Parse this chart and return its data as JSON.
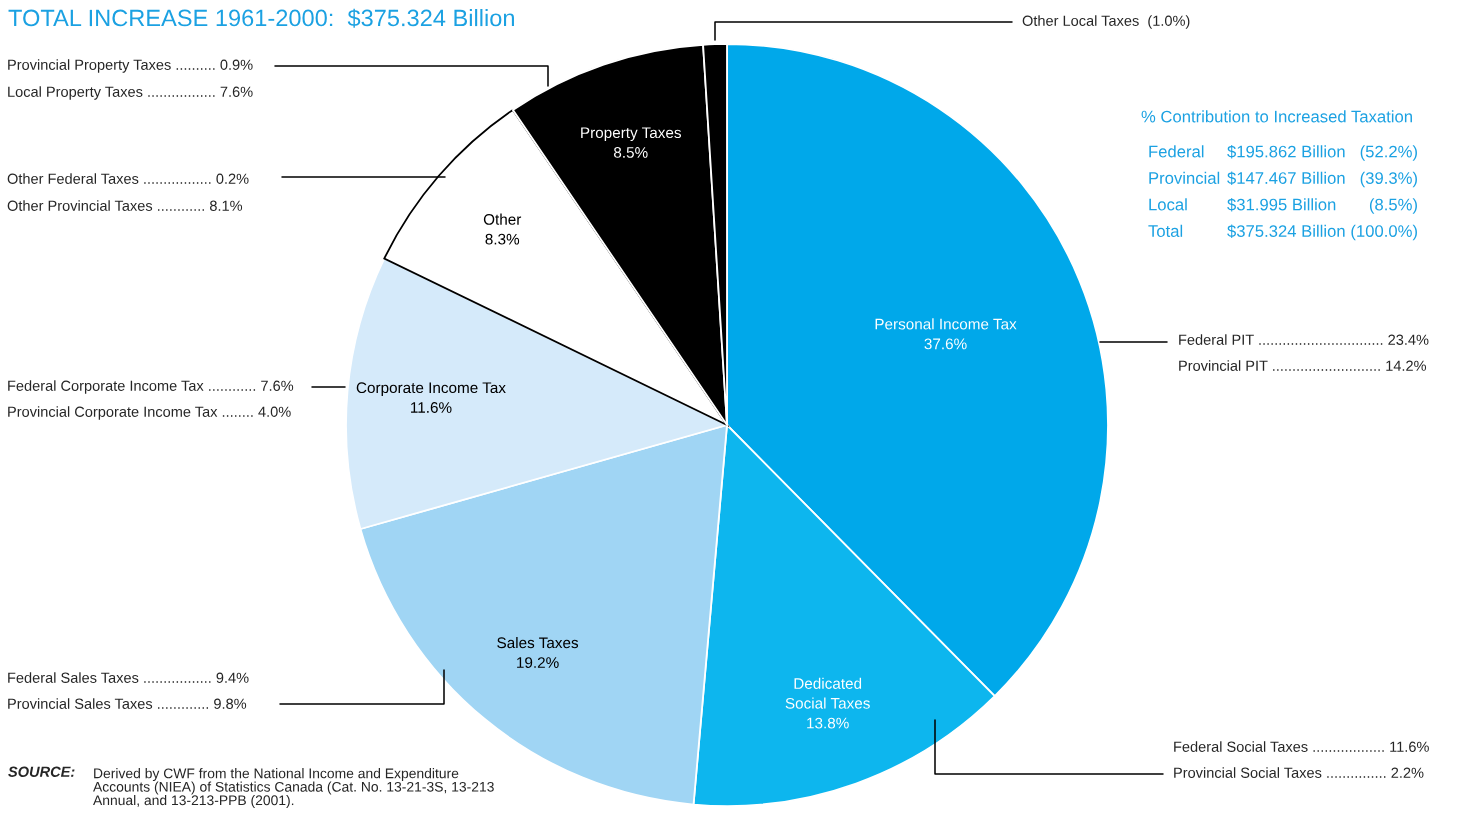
{
  "chart_data": {
    "type": "pie",
    "title": "TOTAL INCREASE 1961-2000:  $375.324 Billion",
    "categories": [
      "Personal Income Tax",
      "Dedicated\nSocial Taxes",
      "Sales Taxes",
      "Corporate Income Tax",
      "Other",
      "Property Taxes",
      "Other Local Taxes"
    ],
    "values": [
      37.6,
      13.8,
      19.2,
      11.6,
      8.3,
      8.5,
      1.0
    ],
    "colors": [
      "#00a8ea",
      "#0db6ee",
      "#a0d5f4",
      "#d5eafa",
      "#ffffff",
      "#000000",
      "#000000"
    ],
    "value_labels": [
      "37.6%",
      "13.8%",
      "19.2%",
      "11.6%",
      "8.3%",
      "8.5%",
      "(1.0%)"
    ],
    "legend": false,
    "annotations": [
      "% Contribution to Increased Taxation",
      "Federal\t$195.862 Billion\t(52.2%)",
      "Provincial\t$147.467 Billion\t(39.3%)",
      "Local\t$31.995 Billion\t(8.5%)",
      "Total\t$375.324 Billion\t(100.0%)",
      "Provincial Property Taxes .......... 0.9%",
      "Local Property Taxes ................. 7.6%",
      "Other Federal Taxes ................. 0.2%",
      "Other Provincial Taxes ............ 8.1%",
      "Federal Corporate Income Tax ............ 7.6%",
      "Provincial Corporate Income Tax ........ 4.0%",
      "Federal Sales Taxes ................. 9.4%",
      "Provincial Sales Taxes ............. 9.8%",
      "Federal PIT ............................... 23.4%",
      "Provincial PIT ........................... 14.2%",
      "Federal Social Taxes .................. 11.6%",
      "Provincial Social Taxes ............... 2.2%",
      "SOURCE:",
      "Derived by CWF from the National Income and Expenditure\nAccounts (NIEA) of Statistics Canada (Cat. No. 13-21-3S, 13-213\nAnnual, and 13-213-PPB (2001)."
    ]
  }
}
